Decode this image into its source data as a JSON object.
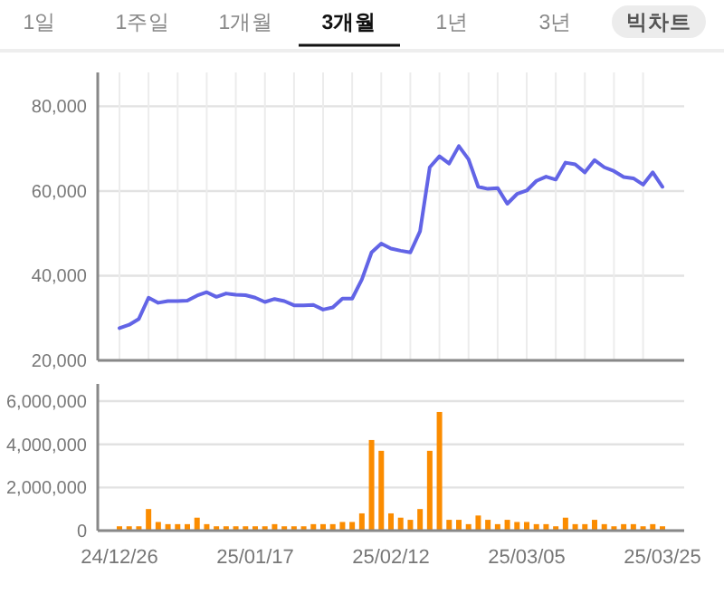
{
  "chart_data": [
    {
      "type": "line",
      "annotations": [
        "1일",
        "1주일",
        "1개월",
        "3개월",
        "1년",
        "3년",
        "빅차트"
      ],
      "categories": [
        null,
        null,
        null,
        null,
        null,
        null,
        null,
        null,
        null,
        null,
        null,
        null,
        null,
        null,
        null,
        null,
        null,
        null,
        null,
        null,
        null,
        null,
        null,
        null,
        null,
        null,
        null,
        null,
        null,
        null,
        null,
        null,
        null,
        null,
        null,
        null,
        null,
        null,
        null,
        null,
        null,
        null,
        null,
        null,
        null,
        null,
        null,
        null,
        null,
        null,
        null,
        null,
        null,
        null,
        null,
        null,
        null
      ],
      "series": [
        {
          "color": "#6264e6",
          "values": [
            27600,
            28400,
            29800,
            34800,
            33600,
            34000,
            34000,
            34100,
            35300,
            36100,
            35000,
            35800,
            35500,
            35400,
            34800,
            33800,
            34500,
            34000,
            33000,
            33000,
            33100,
            32000,
            32500,
            34600,
            34600,
            39100,
            45500,
            47600,
            46400,
            45900,
            45500,
            50500,
            65600,
            68200,
            66500,
            70600,
            67500,
            61000,
            60500,
            60700,
            57000,
            59300,
            60100,
            62400,
            63400,
            62700,
            66700,
            66300,
            64400,
            67300,
            65600,
            64700,
            63300,
            63000,
            61500,
            64400,
            61000
          ]
        }
      ],
      "ylim": [
        20000,
        88000
      ],
      "yticks": [
        {
          "value": 20000,
          "label": "20,000"
        },
        {
          "value": 40000,
          "label": "40,000"
        },
        {
          "value": 60000,
          "label": "60,000"
        },
        {
          "value": 80000,
          "label": "80,000"
        }
      ],
      "grid": true,
      "tick_labels": "y"
    },
    {
      "type": "bar",
      "categories": [
        "24/12/26",
        null,
        null,
        null,
        null,
        null,
        null,
        null,
        null,
        null,
        null,
        null,
        null,
        null,
        "25/01/17",
        null,
        null,
        null,
        null,
        null,
        null,
        null,
        null,
        null,
        null,
        null,
        null,
        null,
        "25/02/12",
        null,
        null,
        null,
        null,
        null,
        null,
        null,
        null,
        null,
        null,
        null,
        null,
        null,
        "25/03/05",
        null,
        null,
        null,
        null,
        null,
        null,
        null,
        null,
        null,
        null,
        null,
        null,
        null,
        "25/03/25"
      ],
      "series": [
        {
          "color": "#fb8c00",
          "values": [
            200000,
            200000,
            200000,
            1000000,
            400000,
            300000,
            300000,
            300000,
            600000,
            300000,
            200000,
            200000,
            200000,
            200000,
            200000,
            200000,
            300000,
            200000,
            200000,
            200000,
            300000,
            300000,
            300000,
            400000,
            400000,
            800000,
            4200000,
            3700000,
            800000,
            600000,
            500000,
            1000000,
            3700000,
            5500000,
            500000,
            500000,
            300000,
            700000,
            500000,
            300000,
            500000,
            400000,
            400000,
            300000,
            300000,
            200000,
            600000,
            300000,
            300000,
            500000,
            300000,
            200000,
            300000,
            300000,
            200000,
            300000,
            200000
          ]
        }
      ],
      "ylim": [
        0,
        6800000
      ],
      "yticks": [
        0,
        {
          "value": 2000000,
          "label": "2,000,000"
        },
        {
          "value": 4000000,
          "label": "4,000,000"
        },
        {
          "value": 6000000,
          "label": "6,000,000"
        }
      ],
      "grid": "y"
    }
  ]
}
